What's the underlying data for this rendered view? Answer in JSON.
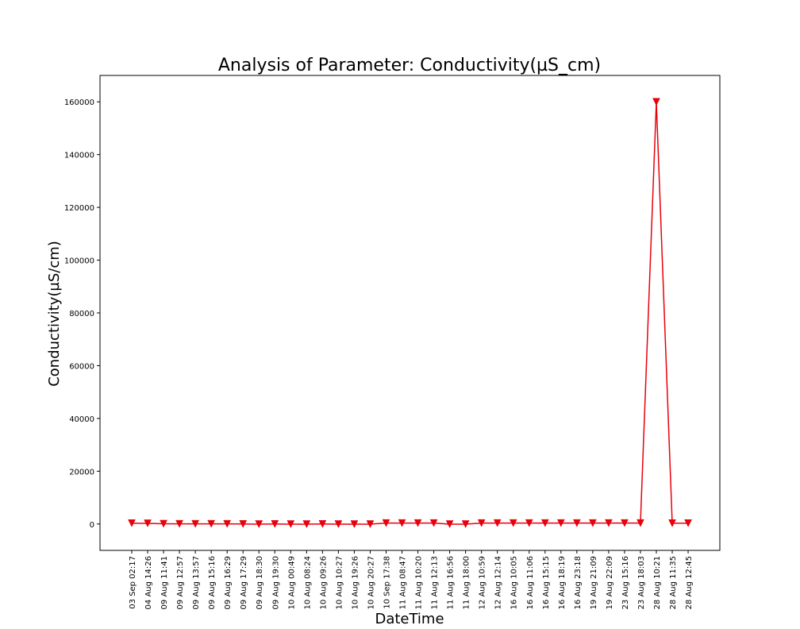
{
  "chart_data": {
    "type": "line",
    "title": "Analysis of Parameter: Conductivity(µS_cm)",
    "xlabel": "DateTime",
    "ylabel": "Conductivity(µS/cm)",
    "ylim": [
      -10000,
      170000
    ],
    "yticks": [
      0,
      20000,
      40000,
      60000,
      80000,
      100000,
      120000,
      140000,
      160000
    ],
    "grid": false,
    "line_color": "#e8000b",
    "marker": "triangle-down",
    "categories": [
      "03 Sep 02:17",
      "04 Aug 14:26",
      "09 Aug 11:41",
      "09 Aug 12:57",
      "09 Aug 13:57",
      "09 Aug 15:16",
      "09 Aug 16:29",
      "09 Aug 17:29",
      "09 Aug 18:30",
      "09 Aug 19:30",
      "10 Aug 00:49",
      "10 Aug 08:24",
      "10 Aug 09:26",
      "10 Aug 10:27",
      "10 Aug 19:26",
      "10 Aug 20:27",
      "10 Sep 17:38",
      "11 Aug 08:47",
      "11 Aug 10:20",
      "11 Aug 12:13",
      "11 Aug 16:56",
      "11 Aug 18:00",
      "12 Aug 10:59",
      "12 Aug 12:14",
      "16 Aug 10:05",
      "16 Aug 11:06",
      "16 Aug 15:15",
      "16 Aug 18:19",
      "16 Aug 23:18",
      "19 Aug 21:09",
      "19 Aug 22:09",
      "23 Aug 15:16",
      "23 Aug 18:03",
      "28 Aug 10:21",
      "28 Aug 11:35",
      "28 Aug 12:45"
    ],
    "values": [
      300,
      250,
      100,
      50,
      50,
      50,
      50,
      0,
      -50,
      0,
      -50,
      -50,
      0,
      -50,
      -50,
      -50,
      350,
      350,
      350,
      350,
      -50,
      -50,
      350,
      350,
      350,
      350,
      350,
      350,
      350,
      350,
      350,
      350,
      350,
      160000,
      300,
      300
    ]
  }
}
